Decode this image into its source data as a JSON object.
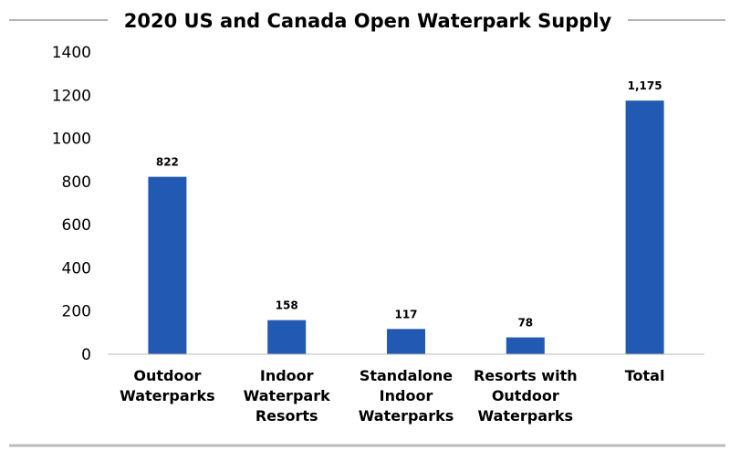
{
  "chart_data": {
    "type": "bar",
    "title": "2020 US and Canada Open Waterpark Supply",
    "categories": [
      [
        "Outdoor",
        "Waterparks"
      ],
      [
        "Indoor",
        "Waterpark",
        "Resorts"
      ],
      [
        "Standalone",
        "Indoor",
        "Waterparks"
      ],
      [
        "Resorts with",
        "Outdoor",
        "Waterparks"
      ],
      [
        "Total"
      ]
    ],
    "values": [
      822,
      158,
      117,
      78,
      1175
    ],
    "data_labels": [
      "822",
      "158",
      "117",
      "78",
      "1,175"
    ],
    "yticks": [
      "0",
      "200",
      "400",
      "600",
      "800",
      "1000",
      "1200",
      "1400"
    ],
    "ylim": [
      0,
      1400
    ],
    "grid": false,
    "bar_color": "#2259b3",
    "xlabel": "",
    "ylabel": ""
  }
}
